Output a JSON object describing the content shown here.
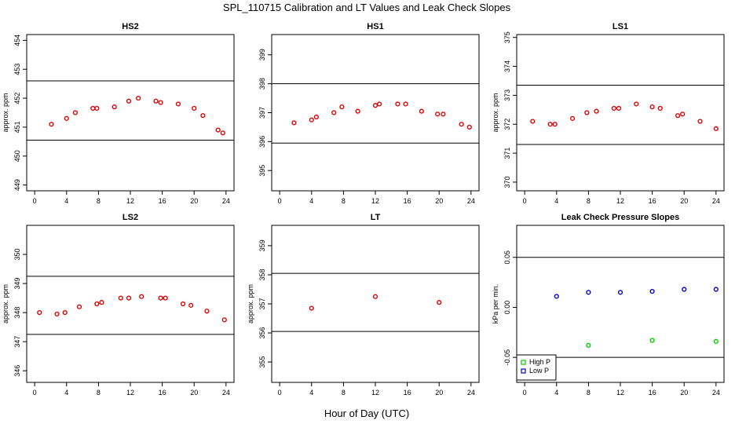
{
  "figure": {
    "title": "SPL_110715  Calibration and LT Values and Leak Check Slopes",
    "xlabel": "Hour of Day (UTC)"
  },
  "chart_data": [
    {
      "type": "scatter",
      "title": "HS2",
      "ylabel": "approx. ppm",
      "xlim": [
        -1,
        25
      ],
      "ylim": [
        448.8,
        454.2
      ],
      "xticks": [
        0,
        4,
        8,
        12,
        16,
        20,
        24
      ],
      "yticks": [
        449,
        450,
        451,
        452,
        453,
        454
      ],
      "hlines": [
        452.6,
        450.55
      ],
      "series": [
        {
          "color": "#dd0000",
          "x": [
            2.1,
            4.0,
            5.1,
            7.3,
            7.8,
            10.0,
            11.8,
            13.0,
            15.2,
            15.8,
            18.0,
            20.0,
            21.1,
            23.0,
            23.6
          ],
          "y": [
            451.1,
            451.3,
            451.5,
            451.65,
            451.65,
            451.7,
            451.9,
            452.0,
            451.9,
            451.85,
            451.8,
            451.65,
            451.4,
            450.9,
            450.8
          ]
        }
      ]
    },
    {
      "type": "scatter",
      "title": "HS1",
      "ylabel": "",
      "xlim": [
        -1,
        25
      ],
      "ylim": [
        394.3,
        399.7
      ],
      "xticks": [
        0,
        4,
        8,
        12,
        16,
        20,
        24
      ],
      "yticks": [
        395,
        396,
        397,
        398,
        399
      ],
      "hlines": [
        398.0,
        395.95
      ],
      "series": [
        {
          "color": "#dd0000",
          "x": [
            1.8,
            4.0,
            4.6,
            6.8,
            7.8,
            9.8,
            12.0,
            12.5,
            14.8,
            15.8,
            17.8,
            19.8,
            20.5,
            22.8,
            23.8
          ],
          "y": [
            396.65,
            396.75,
            396.85,
            397.0,
            397.2,
            397.05,
            397.25,
            397.3,
            397.3,
            397.3,
            397.05,
            396.95,
            396.95,
            396.6,
            396.5
          ]
        }
      ]
    },
    {
      "type": "scatter",
      "title": "LS1",
      "ylabel": "approx. ppm",
      "xlim": [
        -1,
        25
      ],
      "ylim": [
        369.7,
        375.1
      ],
      "xticks": [
        0,
        4,
        8,
        12,
        16,
        20,
        24
      ],
      "yticks": [
        370,
        371,
        372,
        373,
        374,
        375
      ],
      "hlines": [
        373.35,
        371.3
      ],
      "series": [
        {
          "color": "#dd0000",
          "x": [
            1.0,
            3.2,
            3.8,
            6.0,
            7.8,
            9.0,
            11.2,
            11.8,
            14.0,
            16.0,
            17.0,
            19.2,
            19.8,
            22.0,
            24.0
          ],
          "y": [
            372.1,
            372.0,
            372.0,
            372.2,
            372.4,
            372.45,
            372.55,
            372.55,
            372.7,
            372.6,
            372.55,
            372.3,
            372.35,
            372.1,
            371.85
          ]
        }
      ]
    },
    {
      "type": "scatter",
      "title": "LS2",
      "ylabel": "approx. ppm",
      "xlim": [
        -1,
        25
      ],
      "ylim": [
        345.6,
        351.0
      ],
      "xticks": [
        0,
        4,
        8,
        12,
        16,
        20,
        24
      ],
      "yticks": [
        346,
        347,
        348,
        349,
        350
      ],
      "hlines": [
        349.25,
        347.25
      ],
      "series": [
        {
          "color": "#dd0000",
          "x": [
            0.6,
            2.8,
            3.8,
            5.6,
            7.8,
            8.4,
            10.8,
            11.8,
            13.4,
            15.8,
            16.4,
            18.6,
            19.6,
            21.6,
            23.8
          ],
          "y": [
            348.0,
            347.95,
            348.0,
            348.2,
            348.3,
            348.35,
            348.5,
            348.5,
            348.55,
            348.5,
            348.5,
            348.3,
            348.25,
            348.05,
            347.75
          ]
        }
      ]
    },
    {
      "type": "scatter",
      "title": "LT",
      "ylabel": "approx. ppm",
      "xlim": [
        -1,
        25
      ],
      "ylim": [
        354.3,
        359.7
      ],
      "xticks": [
        0,
        4,
        8,
        12,
        16,
        20,
        24
      ],
      "yticks": [
        355,
        356,
        357,
        358,
        359
      ],
      "hlines": [
        358.05,
        356.05
      ],
      "series": [
        {
          "color": "#dd0000",
          "x": [
            4.0,
            12.0,
            20.0
          ],
          "y": [
            356.85,
            357.25,
            357.05
          ]
        }
      ]
    },
    {
      "type": "scatter",
      "title": "Leak Check Pressure Slopes",
      "ylabel": "kPa per min.",
      "xlim": [
        -1,
        25
      ],
      "ylim": [
        -0.075,
        0.082
      ],
      "xticks": [
        0,
        4,
        8,
        12,
        16,
        20,
        24
      ],
      "yticks": [
        -0.05,
        0.0,
        0.05
      ],
      "ytick_labels": [
        "-0.05",
        "0.00",
        "0.05"
      ],
      "hlines": [
        0.05,
        -0.05
      ],
      "legend": "bottom-left",
      "series": [
        {
          "name": "High P",
          "color": "#00cc00",
          "x": [
            8,
            16,
            24
          ],
          "y": [
            -0.038,
            -0.033,
            -0.034
          ]
        },
        {
          "name": "Low P",
          "color": "#0000cc",
          "x": [
            4,
            8,
            12,
            16,
            20,
            24
          ],
          "y": [
            0.011,
            0.015,
            0.015,
            0.016,
            0.018,
            0.018
          ]
        }
      ]
    }
  ]
}
